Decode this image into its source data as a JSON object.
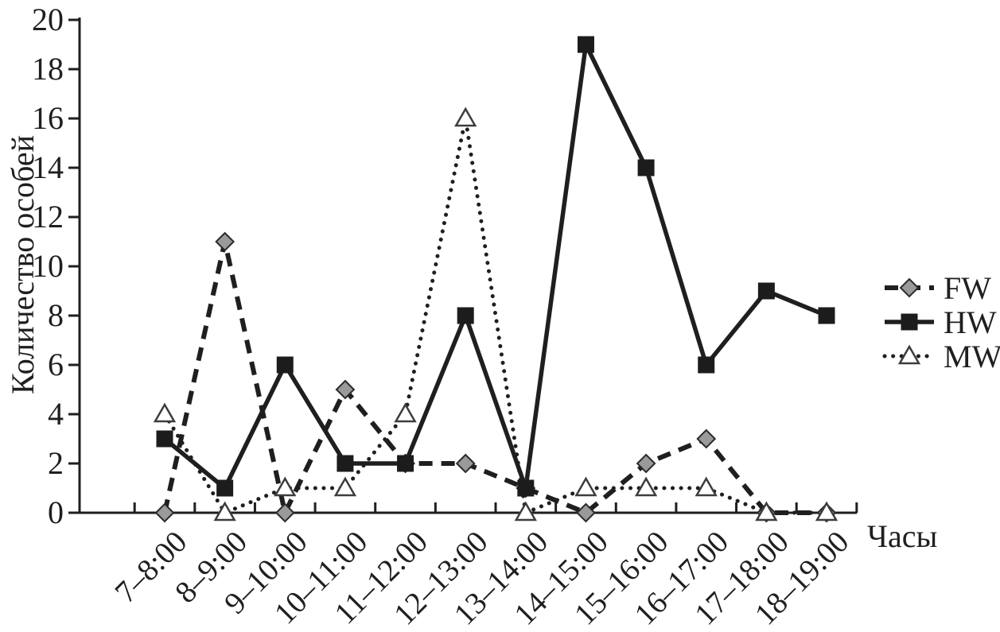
{
  "figure": {
    "background": "#ffffff",
    "ink_color": "#1f1f1f"
  },
  "chart_data": {
    "type": "line",
    "title": "",
    "xlabel": "Часы",
    "ylabel": "Количество особей",
    "categories": [
      "7–8:00",
      "8–9:00",
      "9–10:00",
      "10–11:00",
      "11–12:00",
      "12–13:00",
      "13–14:00",
      "14–15:00",
      "15–16:00",
      "16–17:00",
      "17–18:00",
      "18–19:00"
    ],
    "series": [
      {
        "name": "FW",
        "values": [
          0,
          11,
          0,
          5,
          2,
          2,
          1,
          0,
          2,
          3,
          0,
          0
        ],
        "line_style": "dashed",
        "marker": "diamond",
        "marker_fill": "#9a9a9a",
        "marker_stroke": "#2b2b2b",
        "color": "#1f1f1f"
      },
      {
        "name": "HW",
        "values": [
          3,
          1,
          6,
          2,
          2,
          8,
          1,
          19,
          14,
          6,
          9,
          8
        ],
        "line_style": "solid",
        "marker": "square",
        "marker_fill": "#1c1c1c",
        "marker_stroke": "#1c1c1c",
        "color": "#1f1f1f"
      },
      {
        "name": "MW",
        "values": [
          4,
          0,
          1,
          1,
          4,
          16,
          0,
          1,
          1,
          1,
          0,
          0
        ],
        "line_style": "dotted",
        "marker": "triangle",
        "marker_fill": "#ffffff",
        "marker_stroke": "#3d3d3d",
        "color": "#1f1f1f"
      }
    ],
    "ylim": [
      0,
      20
    ],
    "ytick_step": 2,
    "grid": false,
    "legend_position": "right-middle",
    "legend_labels": [
      "FW",
      "HW",
      "MW"
    ]
  }
}
